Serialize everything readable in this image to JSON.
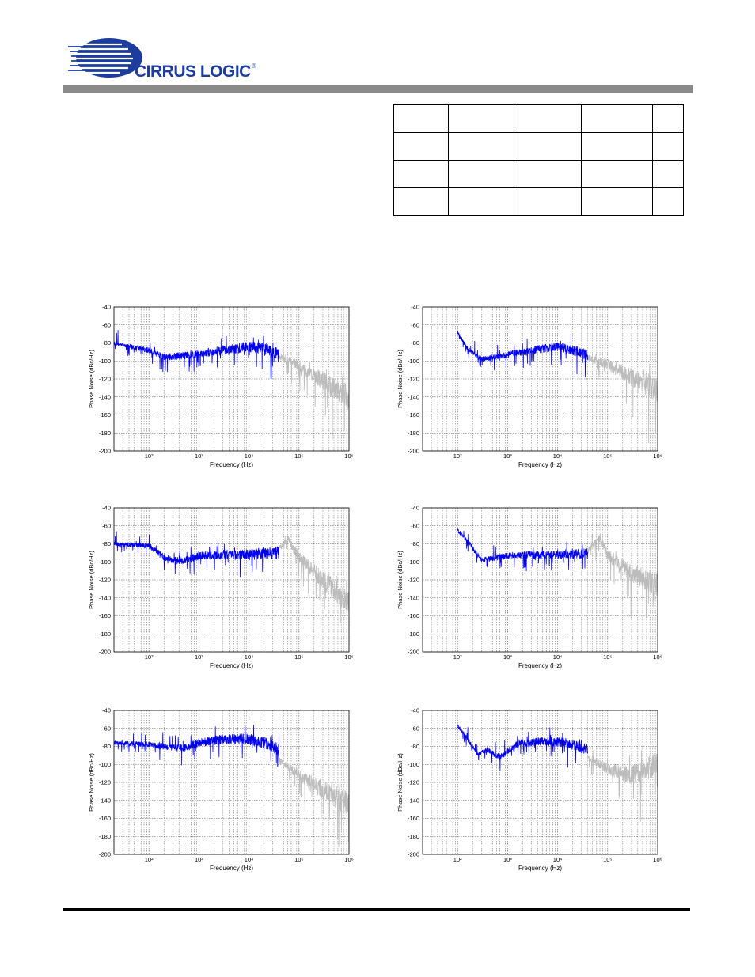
{
  "logo": {
    "text": "CIRRUS LOGIC",
    "mark": "®"
  },
  "colors": {
    "in_band": "#0000ee",
    "out_of_band": "#bcbcbc",
    "header_bar": "#8a8a8a"
  },
  "chart_data": [
    {
      "type": "line",
      "xlabel": "Frequency (Hz)",
      "ylabel": "Phase Noise (dBc/Hz)",
      "xscale": "log",
      "xlim": [
        20,
        1000000
      ],
      "ylim": [
        -200,
        -40
      ],
      "grid": true,
      "yticks": [
        "-40",
        "-60",
        "-80",
        "-100",
        "-120",
        "-140",
        "-160",
        "-180",
        "-200"
      ],
      "xticks": [
        "10²",
        "10³",
        "10⁴",
        "10⁵",
        "10⁶"
      ],
      "series": [
        {
          "x": [
            20,
            100,
            200,
            500,
            1000,
            3000,
            10000,
            20000,
            40000
          ],
          "y": [
            -80,
            -88,
            -96,
            -94,
            -92,
            -88,
            -84,
            -86,
            -92
          ]
        },
        {
          "x": [
            40000,
            100000,
            300000,
            1000000
          ],
          "y": [
            -95,
            -105,
            -122,
            -140
          ]
        }
      ]
    },
    {
      "type": "line",
      "xlabel": "Frequency (Hz)",
      "ylabel": "Phase Noise (dBc/Hz)",
      "xscale": "log",
      "xlim": [
        20,
        1000000
      ],
      "ylim": [
        -200,
        -40
      ],
      "grid": true,
      "yticks": [
        "-40",
        "-60",
        "-80",
        "-100",
        "-120",
        "-140",
        "-160",
        "-180",
        "-200"
      ],
      "xticks": [
        "10²",
        "10³",
        "10⁴",
        "10⁵",
        "10⁶"
      ],
      "series": [
        {
          "x": [
            100,
            150,
            300,
            500,
            1000,
            3000,
            10000,
            20000,
            40000
          ],
          "y": [
            -68,
            -85,
            -98,
            -96,
            -93,
            -88,
            -84,
            -88,
            -94
          ]
        },
        {
          "x": [
            40000,
            100000,
            300000,
            1000000
          ],
          "y": [
            -96,
            -104,
            -118,
            -132
          ]
        }
      ]
    },
    {
      "type": "line",
      "xlabel": "Frequency (Hz)",
      "ylabel": "Phase Noise (dBc/Hz)",
      "xscale": "log",
      "xlim": [
        20,
        1000000
      ],
      "ylim": [
        -200,
        -40
      ],
      "grid": true,
      "yticks": [
        "-40",
        "-60",
        "-80",
        "-100",
        "-120",
        "-140",
        "-160",
        "-180",
        "-200"
      ],
      "xticks": [
        "10²",
        "10³",
        "10⁴",
        "10⁵",
        "10⁶"
      ],
      "series": [
        {
          "x": [
            20,
            100,
            200,
            400,
            1000,
            3000,
            10000,
            20000,
            40000
          ],
          "y": [
            -80,
            -82,
            -95,
            -100,
            -93,
            -92,
            -92,
            -90,
            -90
          ]
        },
        {
          "x": [
            40000,
            60000,
            100000,
            300000,
            1000000
          ],
          "y": [
            -85,
            -75,
            -95,
            -120,
            -145
          ]
        }
      ]
    },
    {
      "type": "line",
      "xlabel": "Frequency (Hz)",
      "ylabel": "Phase Noise (dBc/Hz)",
      "xscale": "log",
      "xlim": [
        20,
        1000000
      ],
      "ylim": [
        -200,
        -40
      ],
      "grid": true,
      "yticks": [
        "-40",
        "-60",
        "-80",
        "-100",
        "-120",
        "-140",
        "-160",
        "-180",
        "-200"
      ],
      "xticks": [
        "10²",
        "10³",
        "10⁴",
        "10⁵",
        "10⁶"
      ],
      "series": [
        {
          "x": [
            100,
            150,
            300,
            500,
            1000,
            3000,
            10000,
            20000,
            40000
          ],
          "y": [
            -65,
            -75,
            -98,
            -96,
            -93,
            -92,
            -92,
            -91,
            -91
          ]
        },
        {
          "x": [
            40000,
            70000,
            100000,
            300000,
            1000000
          ],
          "y": [
            -88,
            -72,
            -92,
            -112,
            -125
          ]
        }
      ]
    },
    {
      "type": "line",
      "xlabel": "Frequency (Hz)",
      "ylabel": "Phase Noise (dBc/Hz)",
      "xscale": "log",
      "xlim": [
        20,
        1000000
      ],
      "ylim": [
        -200,
        -40
      ],
      "grid": true,
      "yticks": [
        "-40",
        "-60",
        "-80",
        "-100",
        "-120",
        "-140",
        "-160",
        "-180",
        "-200"
      ],
      "xticks": [
        "10²",
        "10³",
        "10⁴",
        "10⁵",
        "10⁶"
      ],
      "series": [
        {
          "x": [
            20,
            100,
            200,
            500,
            1000,
            3000,
            10000,
            20000,
            40000
          ],
          "y": [
            -76,
            -78,
            -80,
            -82,
            -76,
            -72,
            -72,
            -76,
            -84
          ]
        },
        {
          "x": [
            40000,
            100000,
            300000,
            1000000
          ],
          "y": [
            -95,
            -112,
            -128,
            -145
          ]
        }
      ]
    },
    {
      "type": "line",
      "xlabel": "Frequency (Hz)",
      "ylabel": "Phase Noise (dBc/Hz)",
      "xscale": "log",
      "xlim": [
        20,
        1000000
      ],
      "ylim": [
        -200,
        -40
      ],
      "grid": true,
      "yticks": [
        "-40",
        "-60",
        "-80",
        "-100",
        "-120",
        "-140",
        "-160",
        "-180",
        "-200"
      ],
      "xticks": [
        "10²",
        "10³",
        "10⁴",
        "10⁵",
        "10⁶"
      ],
      "series": [
        {
          "x": [
            100,
            150,
            250,
            400,
            700,
            1500,
            5000,
            15000,
            40000
          ],
          "y": [
            -57,
            -70,
            -88,
            -84,
            -92,
            -78,
            -74,
            -76,
            -84
          ]
        },
        {
          "x": [
            40000,
            100000,
            300000,
            1000000
          ],
          "y": [
            -92,
            -105,
            -112,
            -100
          ]
        }
      ]
    }
  ]
}
